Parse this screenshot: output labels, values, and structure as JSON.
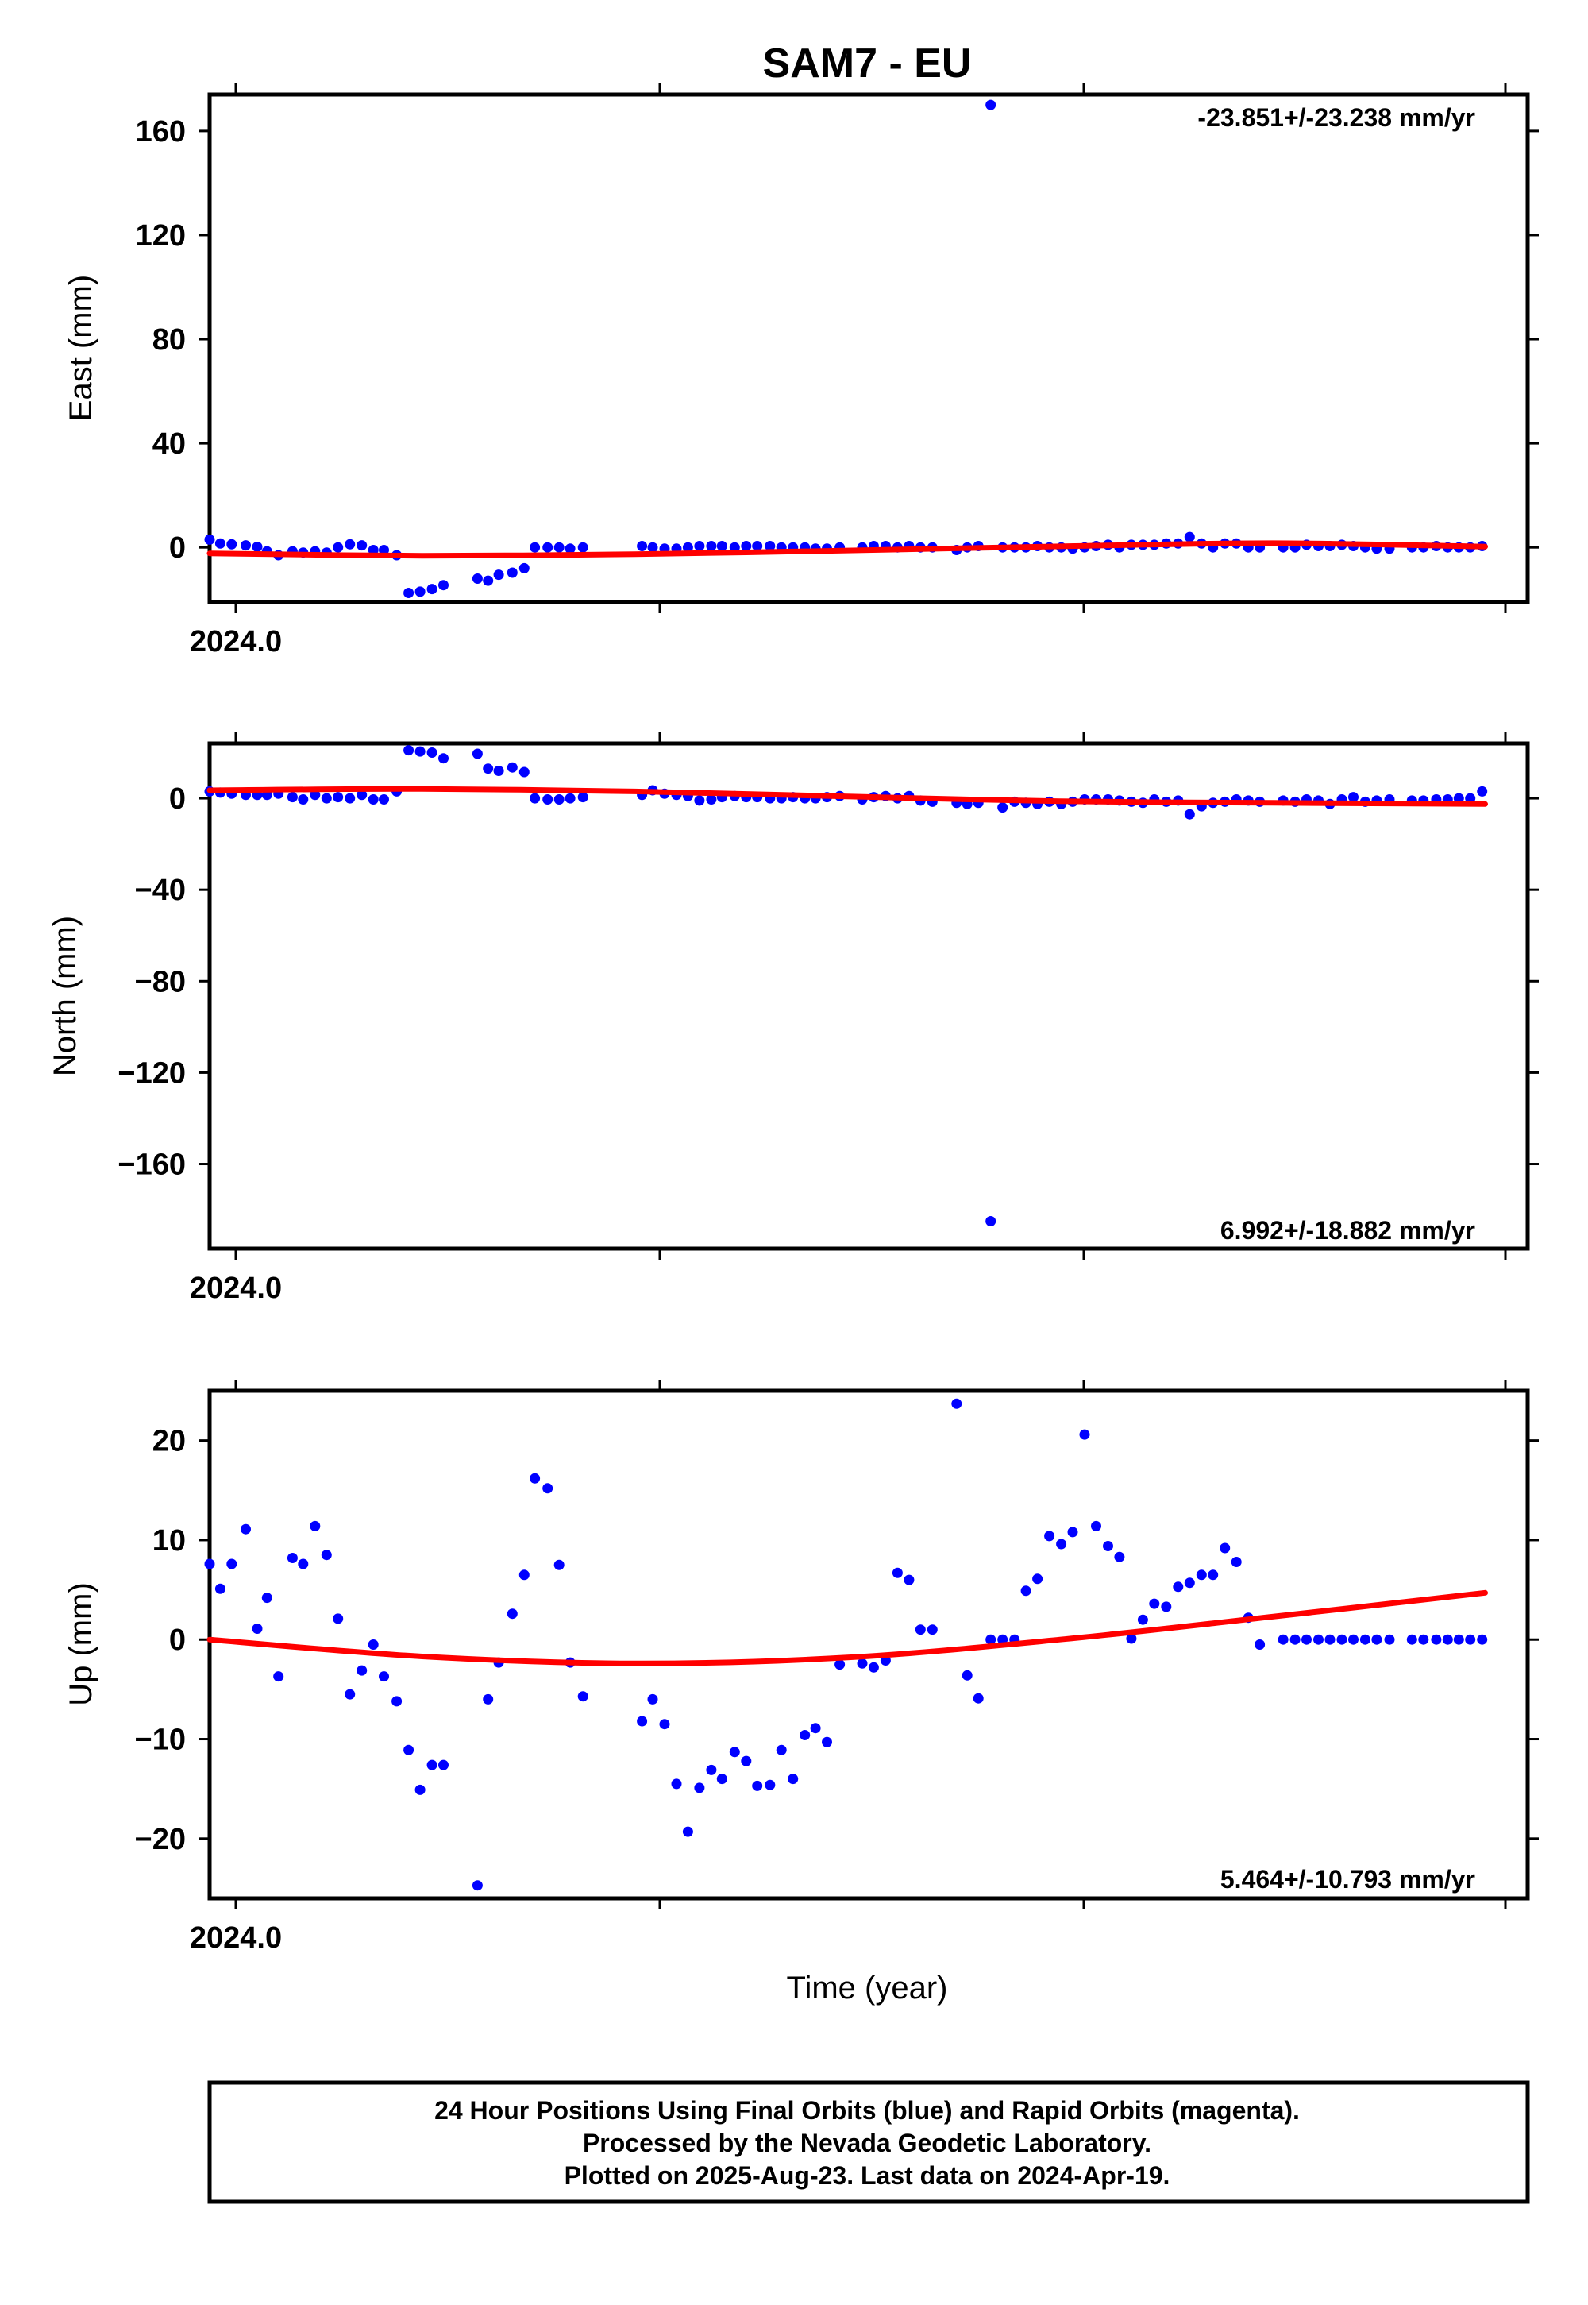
{
  "colors": {
    "data": "#0000ff",
    "fit": "#ff0000",
    "axes": "#000000"
  },
  "footer": {
    "line1": "24 Hour Positions Using Final Orbits (blue) and Rapid Orbits (magenta).",
    "line2": "Processed by the Nevada Geodetic Laboratory.",
    "line3": "Plotted on 2025-Aug-23. Last data on 2024-Apr-19."
  },
  "chart_data": {
    "type": "scatter",
    "title": "SAM7 - EU",
    "xlabel": "Time (year)",
    "x_tick_label": "2024.0",
    "x_unit_note": "x values are decimal year",
    "panels": [
      {
        "ylabel": "East (mm)",
        "ylim": [
          -21,
          174
        ],
        "yticks": [
          0,
          40,
          80,
          120,
          160
        ],
        "rate": "-23.851+/-23.238 mm/yr",
        "x": [
          2024.0,
          2024.0025,
          2024.0052,
          2024.0085,
          2024.0112,
          2024.0135,
          2024.0162,
          2024.0195,
          2024.022,
          2024.0248,
          2024.0275,
          2024.0302,
          2024.033,
          2024.0358,
          2024.0385,
          2024.041,
          2024.044,
          2024.0468,
          2024.0495,
          2024.0523,
          2024.055,
          2024.063,
          2024.0655,
          2024.068,
          2024.0712,
          2024.074,
          2024.0765,
          2024.0795,
          2024.0822,
          2024.0848,
          2024.0878,
          2024.1017,
          2024.1042,
          2024.107,
          2024.1098,
          2024.1125,
          2024.1152,
          2024.118,
          2024.1205,
          2024.1235,
          2024.1262,
          2024.1288,
          2024.1318,
          2024.1345,
          2024.1372,
          2024.14,
          2024.1425,
          2024.1452,
          2024.1482,
          2024.1535,
          2024.1562,
          2024.159,
          2024.1618,
          2024.1645,
          2024.1672,
          2024.17,
          2024.1757,
          2024.1782,
          2024.1808,
          2024.1837,
          2024.1865,
          2024.1893,
          2024.192,
          2024.1947,
          2024.1975,
          2024.2003,
          2024.203,
          2024.2058,
          2024.2085,
          2024.2113,
          2024.214,
          2024.2168,
          2024.2195,
          2024.2222,
          2024.225,
          2024.2278,
          2024.2305,
          2024.2333,
          2024.236,
          2024.2388,
          2024.2415,
          2024.2443,
          2024.247,
          2024.2525,
          2024.2553,
          2024.258,
          2024.2608,
          2024.2635,
          2024.2663,
          2024.269,
          2024.2718,
          2024.2745,
          2024.2775,
          2024.2828,
          2024.2855,
          2024.2885,
          2024.2912,
          2024.2938,
          2024.2965,
          2024.2993
        ],
        "y": [
          3,
          1.5,
          1.2,
          0.8,
          0.2,
          -1.5,
          -3,
          -1.5,
          -2,
          -1.5,
          -2,
          0,
          1.2,
          0.8,
          -1,
          -1,
          -3,
          -17.5,
          -17,
          -16,
          -14.5,
          -12,
          -12.8,
          -10.5,
          -9.7,
          -8,
          0,
          0,
          0,
          -0.5,
          0,
          0.5,
          0,
          -0.5,
          -0.5,
          0,
          0.5,
          0.5,
          0.5,
          0,
          0.5,
          0.5,
          0.5,
          0,
          0,
          0,
          -0.5,
          -0.5,
          0,
          0,
          0.5,
          0.5,
          0,
          0.5,
          0,
          0,
          -1,
          0,
          0.5,
          170,
          0,
          0,
          0,
          0.5,
          0,
          0,
          -0.5,
          0,
          0.5,
          1,
          0,
          1,
          1,
          1,
          1.5,
          1.5,
          4,
          1.5,
          0,
          1.5,
          1.5,
          0,
          0,
          0,
          0,
          1,
          0.5,
          0.5,
          1,
          0.5,
          0,
          -0.5,
          -0.5,
          0,
          0,
          0.5,
          0,
          0,
          0,
          0.5
        ]
      },
      {
        "ylabel": "North (mm)",
        "ylim": [
          -197,
          24
        ],
        "yticks": [
          0,
          -40,
          -80,
          -120,
          -160
        ],
        "rate": "6.992+/-18.882 mm/yr",
        "x": [
          2024.0,
          2024.0025,
          2024.0052,
          2024.0085,
          2024.0112,
          2024.0135,
          2024.0162,
          2024.0195,
          2024.022,
          2024.0248,
          2024.0275,
          2024.0302,
          2024.033,
          2024.0358,
          2024.0385,
          2024.041,
          2024.044,
          2024.0468,
          2024.0495,
          2024.0523,
          2024.055,
          2024.063,
          2024.0655,
          2024.068,
          2024.0712,
          2024.074,
          2024.0765,
          2024.0795,
          2024.0822,
          2024.0848,
          2024.0878,
          2024.1017,
          2024.1042,
          2024.107,
          2024.1098,
          2024.1125,
          2024.1152,
          2024.118,
          2024.1205,
          2024.1235,
          2024.1262,
          2024.1288,
          2024.1318,
          2024.1345,
          2024.1372,
          2024.14,
          2024.1425,
          2024.1452,
          2024.1482,
          2024.1535,
          2024.1562,
          2024.159,
          2024.1618,
          2024.1645,
          2024.1672,
          2024.17,
          2024.1757,
          2024.1782,
          2024.1808,
          2024.1837,
          2024.1865,
          2024.1893,
          2024.192,
          2024.1947,
          2024.1975,
          2024.2003,
          2024.203,
          2024.2058,
          2024.2085,
          2024.2113,
          2024.214,
          2024.2168,
          2024.2195,
          2024.2222,
          2024.225,
          2024.2278,
          2024.2305,
          2024.2333,
          2024.236,
          2024.2388,
          2024.2415,
          2024.2443,
          2024.247,
          2024.2525,
          2024.2553,
          2024.258,
          2024.2608,
          2024.2635,
          2024.2663,
          2024.269,
          2024.2718,
          2024.2745,
          2024.2775,
          2024.2828,
          2024.2855,
          2024.2885,
          2024.2912,
          2024.2938,
          2024.2965,
          2024.2993
        ],
        "y": [
          3,
          2.5,
          2,
          1.5,
          1.5,
          1.5,
          2,
          0.5,
          -0.5,
          1.5,
          0,
          0.5,
          0,
          1.5,
          -0.5,
          -0.5,
          3,
          21,
          20.5,
          20,
          17.5,
          19.5,
          13,
          12,
          13.5,
          11.5,
          0,
          -0.5,
          -0.5,
          0,
          0.5,
          1.5,
          3.5,
          2,
          1.5,
          1,
          -1,
          -0.5,
          0.5,
          1,
          0.5,
          0.5,
          0,
          0,
          0.5,
          0,
          0,
          0.5,
          1,
          -0.5,
          0.5,
          1,
          0,
          1,
          -1,
          -1.5,
          -2,
          -2.5,
          -2,
          -185,
          -4,
          -1.5,
          -2,
          -2.5,
          -1.5,
          -2.5,
          -1.5,
          -0.5,
          -0.5,
          -0.5,
          -1,
          -1.5,
          -2,
          -0.5,
          -1.5,
          -1,
          -7,
          -3.5,
          -2,
          -1.5,
          -0.5,
          -1,
          -1.5,
          -1,
          -1.5,
          -0.5,
          -1,
          -2.5,
          -0.5,
          0.5,
          -1.5,
          -1,
          -0.5,
          -1,
          -1,
          -0.5,
          -0.5,
          0,
          0,
          3
        ]
      },
      {
        "ylabel": "Up (mm)",
        "ylim": [
          -26,
          25
        ],
        "yticks": [
          20,
          10,
          0,
          -10,
          -20
        ],
        "rate": "5.464+/-10.793 mm/yr",
        "x": [
          2024.0,
          2024.0025,
          2024.0052,
          2024.0085,
          2024.0112,
          2024.0135,
          2024.0162,
          2024.0195,
          2024.022,
          2024.0248,
          2024.0275,
          2024.0302,
          2024.033,
          2024.0358,
          2024.0385,
          2024.041,
          2024.044,
          2024.0468,
          2024.0495,
          2024.0523,
          2024.055,
          2024.063,
          2024.0655,
          2024.068,
          2024.0712,
          2024.074,
          2024.0765,
          2024.0795,
          2024.0822,
          2024.0848,
          2024.0878,
          2024.1017,
          2024.1042,
          2024.107,
          2024.1098,
          2024.1125,
          2024.1152,
          2024.118,
          2024.1205,
          2024.1235,
          2024.1262,
          2024.1288,
          2024.1318,
          2024.1345,
          2024.1372,
          2024.14,
          2024.1425,
          2024.1452,
          2024.1482,
          2024.1535,
          2024.1562,
          2024.159,
          2024.1618,
          2024.1645,
          2024.1672,
          2024.17,
          2024.1757,
          2024.1782,
          2024.1808,
          2024.1837,
          2024.1865,
          2024.1893,
          2024.192,
          2024.1947,
          2024.1975,
          2024.2003,
          2024.203,
          2024.2058,
          2024.2085,
          2024.2113,
          2024.214,
          2024.2168,
          2024.2195,
          2024.2222,
          2024.225,
          2024.2278,
          2024.2305,
          2024.2333,
          2024.236,
          2024.2388,
          2024.2415,
          2024.2443,
          2024.247,
          2024.2525,
          2024.2553,
          2024.258,
          2024.2608,
          2024.2635,
          2024.2663,
          2024.269,
          2024.2718,
          2024.2745,
          2024.2775,
          2024.2828,
          2024.2855,
          2024.2885,
          2024.2912,
          2024.2938,
          2024.2965,
          2024.2993
        ],
        "y": [
          7.6,
          5.1,
          7.6,
          11.1,
          1.1,
          4.2,
          -3.7,
          8.2,
          7.6,
          11.4,
          8.5,
          2.1,
          -5.5,
          -3.1,
          -0.5,
          -3.7,
          -6.2,
          -11.1,
          -15.1,
          -12.6,
          -12.6,
          -24.7,
          -6,
          -2.3,
          2.6,
          6.5,
          16.2,
          15.2,
          7.5,
          -2.3,
          -5.7,
          -8.2,
          -6,
          -8.5,
          -14.5,
          -19.3,
          -14.9,
          -13.1,
          -14,
          -11.3,
          -12.2,
          -14.7,
          -14.6,
          -11.1,
          -14,
          -9.6,
          -8.9,
          -10.3,
          -2.5,
          -2.4,
          -2.8,
          -2.1,
          6.7,
          6,
          1,
          1,
          23.7,
          -3.6,
          -5.9,
          0,
          0,
          0,
          4.9,
          6.1,
          10.4,
          9.6,
          10.8,
          20.6,
          11.4,
          9.4,
          8.3,
          0.1,
          2,
          3.6,
          3.3,
          5.3,
          5.7,
          6.5,
          6.5,
          9.2,
          7.8,
          2.2,
          -0.5,
          0,
          0,
          0,
          0,
          0,
          0,
          0,
          0,
          0,
          0,
          0,
          0,
          0,
          0,
          0,
          0,
          0
        ]
      }
    ]
  }
}
